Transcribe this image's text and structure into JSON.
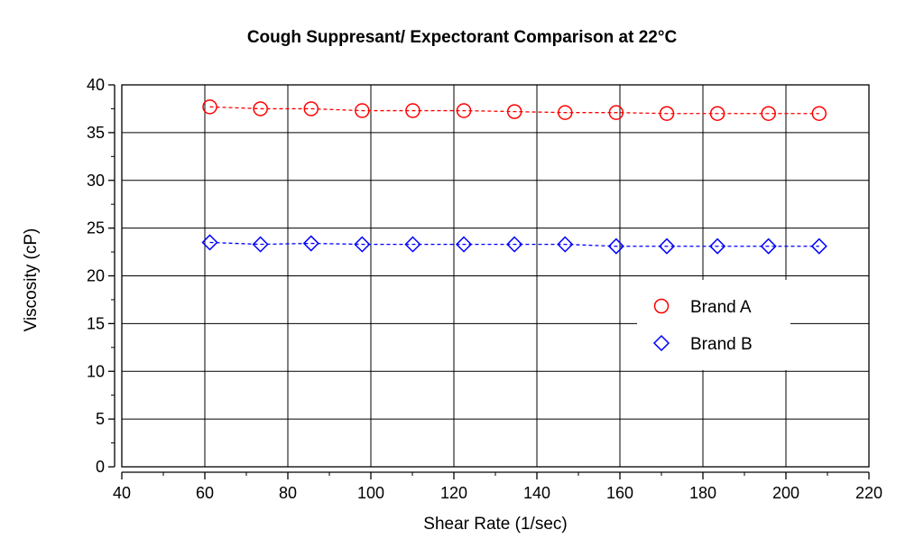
{
  "chart_data": {
    "type": "scatter",
    "title": "Cough Suppresant/ Expectorant Comparison at 22°C",
    "xlabel": "Shear Rate (1/sec)",
    "ylabel": "Viscosity (cP)",
    "xlim": [
      40,
      220
    ],
    "ylim": [
      0,
      40
    ],
    "xticks": [
      40,
      60,
      80,
      100,
      120,
      140,
      160,
      180,
      200,
      220
    ],
    "yticks": [
      0,
      5,
      10,
      15,
      20,
      25,
      30,
      35,
      40
    ],
    "grid": true,
    "legend_position": "right-center",
    "series": [
      {
        "name": "Brand A",
        "marker": "circle",
        "color": "#ff0000",
        "x": [
          61.2,
          73.4,
          85.6,
          97.9,
          110.1,
          122.4,
          134.6,
          146.8,
          159.1,
          171.3,
          183.5,
          195.8,
          208.0
        ],
        "y": [
          37.7,
          37.5,
          37.5,
          37.3,
          37.3,
          37.3,
          37.2,
          37.1,
          37.1,
          37.0,
          37.0,
          37.0,
          37.0
        ]
      },
      {
        "name": "Brand B",
        "marker": "diamond",
        "color": "#0000ff",
        "x": [
          61.2,
          73.4,
          85.6,
          97.9,
          110.1,
          122.4,
          134.6,
          146.8,
          159.1,
          171.3,
          183.5,
          195.8,
          208.0
        ],
        "y": [
          23.5,
          23.3,
          23.4,
          23.3,
          23.3,
          23.3,
          23.3,
          23.3,
          23.1,
          23.1,
          23.1,
          23.1,
          23.1
        ]
      }
    ]
  }
}
